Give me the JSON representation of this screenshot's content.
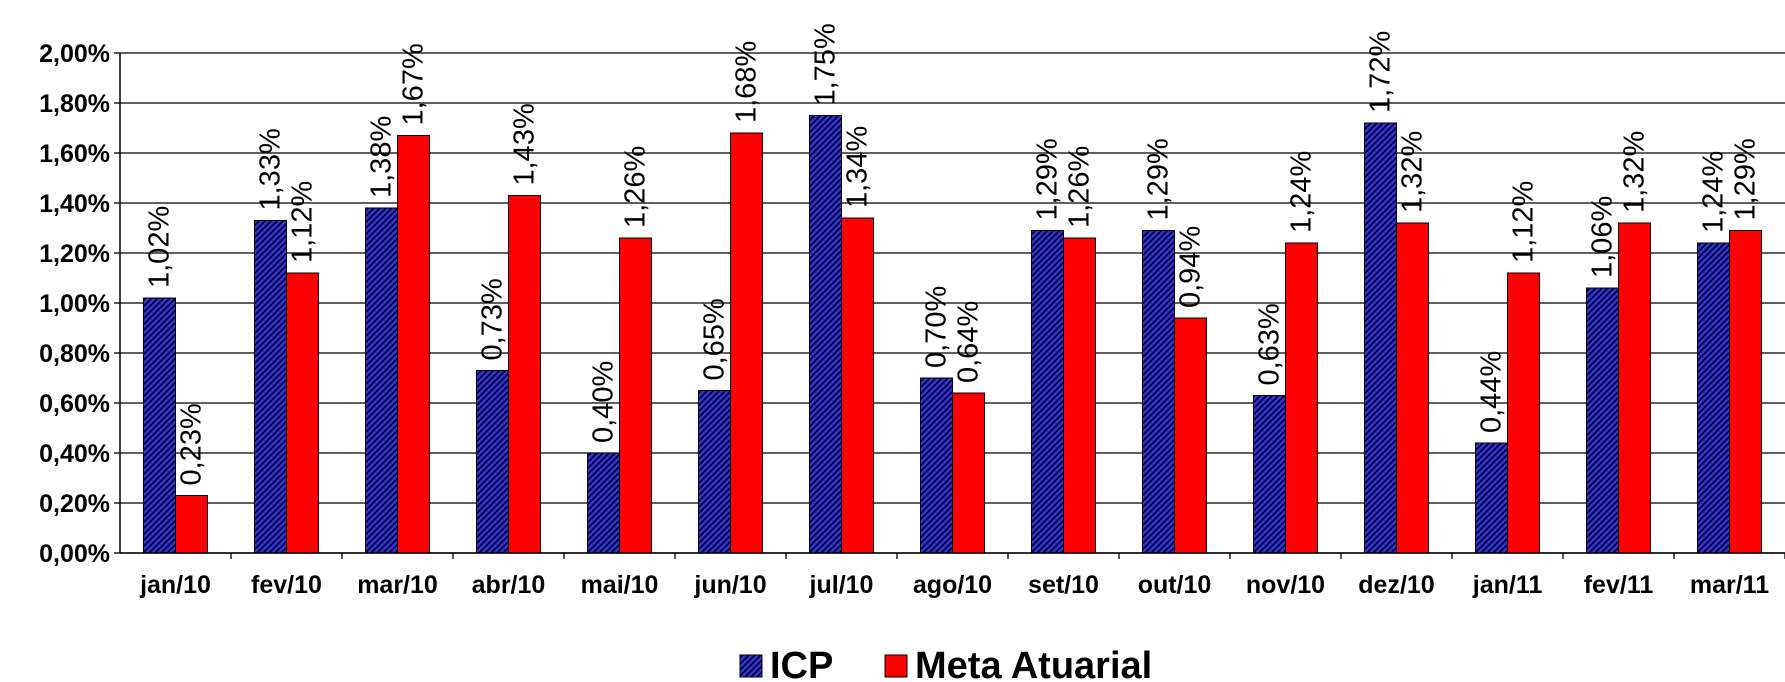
{
  "chart_data": {
    "type": "bar",
    "title": "",
    "xlabel": "",
    "ylabel": "",
    "ylim": [
      0,
      2.0
    ],
    "grid": true,
    "legend_position": "bottom",
    "y_ticks": [
      "0,00%",
      "0,20%",
      "0,40%",
      "0,60%",
      "0,80%",
      "1,00%",
      "1,20%",
      "1,40%",
      "1,60%",
      "1,80%",
      "2,00%"
    ],
    "categories": [
      "jan/10",
      "fev/10",
      "mar/10",
      "abr/10",
      "mai/10",
      "jun/10",
      "jul/10",
      "ago/10",
      "set/10",
      "out/10",
      "nov/10",
      "dez/10",
      "jan/11",
      "fev/11",
      "mar/11"
    ],
    "series": [
      {
        "name": "ICP",
        "color": "#3333cc",
        "pattern": "diagonal-hatch",
        "values": [
          1.02,
          1.33,
          1.38,
          0.73,
          0.4,
          0.65,
          1.75,
          0.7,
          1.29,
          1.29,
          0.63,
          1.72,
          0.44,
          1.06,
          1.24
        ],
        "labels": [
          "1,02%",
          "1,33%",
          "1,38%",
          "0,73%",
          "0,40%",
          "0,65%",
          "1,75%",
          "0,70%",
          "1,29%",
          "1,29%",
          "0,63%",
          "1,72%",
          "0,44%",
          "1,06%",
          "1,24%"
        ]
      },
      {
        "name": "Meta Atuarial",
        "color": "#ff0000",
        "values": [
          0.23,
          1.12,
          1.67,
          1.43,
          1.26,
          1.68,
          1.34,
          0.64,
          1.26,
          0.94,
          1.24,
          1.32,
          1.12,
          1.32,
          1.29
        ],
        "labels": [
          "0,23%",
          "1,12%",
          "1,67%",
          "1,43%",
          "1,26%",
          "1,68%",
          "1,34%",
          "0,64%",
          "1,26%",
          "0,94%",
          "1,24%",
          "1,32%",
          "1,12%",
          "1,32%",
          "1,29%"
        ]
      }
    ]
  }
}
